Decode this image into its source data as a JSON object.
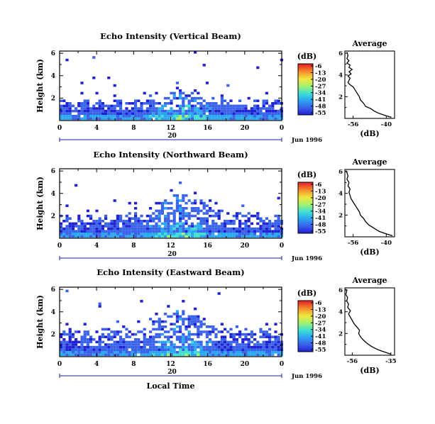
{
  "chart_data": [
    {
      "type": "heatmap",
      "title": "Echo Intensity (Vertical Beam)",
      "ylabel": "Height (km)",
      "x_ticks": [
        "0",
        "4",
        "8",
        "12",
        "16",
        "20",
        "0"
      ],
      "y_ticks": [
        "6",
        "4",
        "2"
      ],
      "xlim": [
        0,
        24
      ],
      "ylim": [
        0,
        6.2
      ],
      "date_ticks": [
        "20"
      ],
      "date_label": "Jun 1996",
      "colorbar": {
        "title": "(dB)",
        "ticks": [
          "-6",
          "-13",
          "-20",
          "-27",
          "-34",
          "-41",
          "-48",
          "-55"
        ]
      },
      "echo_top_km": 1.6,
      "average": {
        "title": "Average",
        "xlabel": "(dB)",
        "x_ticks": [
          "-56",
          "-40"
        ],
        "y_ticks": [
          "6",
          "4",
          "2"
        ],
        "xlim": [
          -60,
          -36
        ],
        "ylim": [
          0,
          6.2
        ],
        "profile": [
          {
            "h": 0.1,
            "db": -37.5
          },
          {
            "h": 0.3,
            "db": -41
          },
          {
            "h": 0.5,
            "db": -44
          },
          {
            "h": 0.7,
            "db": -46
          },
          {
            "h": 0.9,
            "db": -47.5
          },
          {
            "h": 1.1,
            "db": -50
          },
          {
            "h": 1.4,
            "db": -51
          },
          {
            "h": 1.7,
            "db": -52.5
          },
          {
            "h": 2.0,
            "db": -53
          },
          {
            "h": 2.3,
            "db": -54
          },
          {
            "h": 2.6,
            "db": -55
          },
          {
            "h": 2.9,
            "db": -56
          },
          {
            "h": 3.1,
            "db": -57.5
          },
          {
            "h": 3.3,
            "db": -58.5
          },
          {
            "h": 3.5,
            "db": -58
          },
          {
            "h": 3.7,
            "db": -57.5
          },
          {
            "h": 3.9,
            "db": -58.5
          },
          {
            "h": 4.1,
            "db": -57
          },
          {
            "h": 4.3,
            "db": -58
          },
          {
            "h": 4.5,
            "db": -56.5
          },
          {
            "h": 4.7,
            "db": -58
          },
          {
            "h": 4.9,
            "db": -57.5
          },
          {
            "h": 5.1,
            "db": -59
          },
          {
            "h": 5.3,
            "db": -58
          },
          {
            "h": 5.5,
            "db": -59
          },
          {
            "h": 5.8,
            "db": -58.5
          },
          {
            "h": 6.1,
            "db": -59
          }
        ]
      }
    },
    {
      "type": "heatmap",
      "title": "Echo Intensity (Northward Beam)",
      "ylabel": "Height (km)",
      "x_ticks": [
        "0",
        "4",
        "8",
        "12",
        "16",
        "20",
        "0"
      ],
      "y_ticks": [
        "6",
        "4",
        "2"
      ],
      "xlim": [
        0,
        24
      ],
      "ylim": [
        0,
        6.2
      ],
      "date_ticks": [
        "20"
      ],
      "date_label": "Jun 1996",
      "colorbar": {
        "title": "(dB)",
        "ticks": [
          "-6",
          "-13",
          "-20",
          "-27",
          "-34",
          "-41",
          "-48",
          "-55"
        ]
      },
      "echo_top_km": 2.0,
      "average": {
        "title": "Average",
        "xlabel": "(dB)",
        "x_ticks": [
          "-56",
          "-40"
        ],
        "y_ticks": [
          "6",
          "4",
          "2"
        ],
        "xlim": [
          -60,
          -36
        ],
        "ylim": [
          0,
          6.2
        ],
        "profile": [
          {
            "h": 0.1,
            "db": -37
          },
          {
            "h": 0.3,
            "db": -40.5
          },
          {
            "h": 0.5,
            "db": -43.5
          },
          {
            "h": 0.8,
            "db": -46
          },
          {
            "h": 1.1,
            "db": -48.5
          },
          {
            "h": 1.4,
            "db": -50
          },
          {
            "h": 1.7,
            "db": -51
          },
          {
            "h": 2.0,
            "db": -52.5
          },
          {
            "h": 2.3,
            "db": -53
          },
          {
            "h": 2.6,
            "db": -54
          },
          {
            "h": 2.9,
            "db": -55
          },
          {
            "h": 3.2,
            "db": -56
          },
          {
            "h": 3.5,
            "db": -57
          },
          {
            "h": 3.8,
            "db": -57.5
          },
          {
            "h": 4.1,
            "db": -58
          },
          {
            "h": 4.4,
            "db": -57.5
          },
          {
            "h": 4.7,
            "db": -58.5
          },
          {
            "h": 5.0,
            "db": -58
          },
          {
            "h": 5.3,
            "db": -59
          },
          {
            "h": 5.6,
            "db": -58.5
          },
          {
            "h": 5.9,
            "db": -59
          },
          {
            "h": 6.1,
            "db": -59.5
          }
        ]
      }
    },
    {
      "type": "heatmap",
      "title": "Echo Intensity (Eastward Beam)",
      "ylabel": "Height (km)",
      "x_ticks": [
        "0",
        "4",
        "8",
        "12",
        "16",
        "20",
        "0"
      ],
      "y_ticks": [
        "6",
        "4",
        "2"
      ],
      "xlim": [
        0,
        24
      ],
      "ylim": [
        0,
        6.2
      ],
      "date_ticks": [
        "20"
      ],
      "date_label": "Jun 1996",
      "xlabel": "Local Time",
      "colorbar": {
        "title": "(dB)",
        "ticks": [
          "-6",
          "-13",
          "-20",
          "-27",
          "-34",
          "-41",
          "-48",
          "-55"
        ]
      },
      "echo_top_km": 2.2,
      "average": {
        "title": "Average",
        "xlabel": "(dB)",
        "x_ticks": [
          "-56",
          "-35"
        ],
        "y_ticks": [
          "6",
          "4",
          "2"
        ],
        "xlim": [
          -60,
          -33
        ],
        "ylim": [
          0,
          6.2
        ],
        "profile": [
          {
            "h": 0.1,
            "db": -35
          },
          {
            "h": 0.3,
            "db": -38.5
          },
          {
            "h": 0.5,
            "db": -42
          },
          {
            "h": 0.8,
            "db": -45.5
          },
          {
            "h": 1.1,
            "db": -48
          },
          {
            "h": 1.4,
            "db": -50
          },
          {
            "h": 1.7,
            "db": -51.5
          },
          {
            "h": 2.0,
            "db": -52.5
          },
          {
            "h": 2.3,
            "db": -52
          },
          {
            "h": 2.6,
            "db": -53.5
          },
          {
            "h": 2.9,
            "db": -55
          },
          {
            "h": 3.2,
            "db": -56
          },
          {
            "h": 3.5,
            "db": -57
          },
          {
            "h": 3.8,
            "db": -58
          },
          {
            "h": 4.1,
            "db": -57
          },
          {
            "h": 4.4,
            "db": -58.5
          },
          {
            "h": 4.7,
            "db": -58
          },
          {
            "h": 5.0,
            "db": -59
          },
          {
            "h": 5.3,
            "db": -58.5
          },
          {
            "h": 5.6,
            "db": -59.5
          },
          {
            "h": 5.9,
            "db": -59
          },
          {
            "h": 6.1,
            "db": -59.5
          }
        ]
      }
    }
  ],
  "colormap": [
    "#2121d4",
    "#3a63ea",
    "#2ba7f1",
    "#3fe0d2",
    "#a4f26e",
    "#f2e641",
    "#f5922b",
    "#e8282b"
  ]
}
